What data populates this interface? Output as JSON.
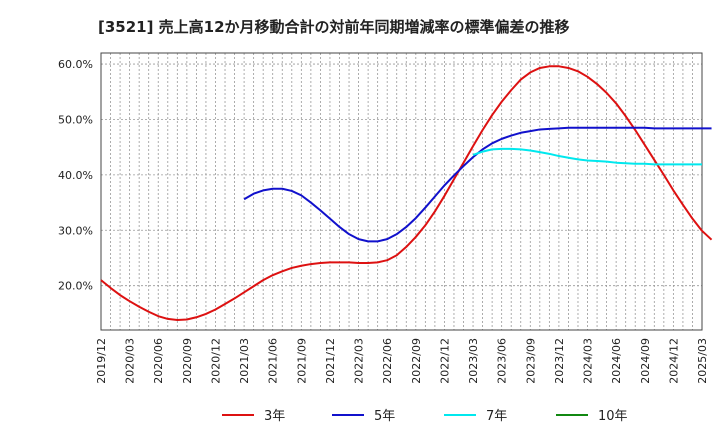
{
  "chart_data": {
    "type": "line",
    "title": "[3521]  売上高12か月移動合計の対前年同期増減率の標準偏差の推移",
    "xlabel": "",
    "ylabel": "",
    "ylim": [
      12,
      62
    ],
    "y_ticks": [
      "20.0%",
      "30.0%",
      "40.0%",
      "50.0%",
      "60.0%"
    ],
    "y_tick_values": [
      20,
      30,
      40,
      50,
      60
    ],
    "x_tick_labels": [
      "2019/12",
      "2020/03",
      "2020/06",
      "2020/09",
      "2020/12",
      "2021/03",
      "2021/06",
      "2021/09",
      "2021/12",
      "2022/03",
      "2022/06",
      "2022/09",
      "2022/12",
      "2023/03",
      "2023/06",
      "2023/09",
      "2023/12",
      "2024/03",
      "2024/06",
      "2024/09",
      "2024/12",
      "2025/03"
    ],
    "grid": true,
    "legend_position": "bottom",
    "series": [
      {
        "name": "3年",
        "color": "#dd1111",
        "start_index": 0,
        "values": [
          21.0,
          19.6,
          18.3,
          17.2,
          16.2,
          15.3,
          14.5,
          14.0,
          13.8,
          13.9,
          14.3,
          14.9,
          15.7,
          16.7,
          17.7,
          18.8,
          19.9,
          21.0,
          21.9,
          22.6,
          23.2,
          23.6,
          23.9,
          24.1,
          24.2,
          24.2,
          24.2,
          24.1,
          24.1,
          24.2,
          24.6,
          25.5,
          27.0,
          28.8,
          30.9,
          33.4,
          36.2,
          39.2,
          42.2,
          45.2,
          48.1,
          50.8,
          53.2,
          55.3,
          57.2,
          58.5,
          59.3,
          59.6,
          59.6,
          59.3,
          58.7,
          57.7,
          56.4,
          54.8,
          52.9,
          50.6,
          48.1,
          45.4,
          42.7,
          40.0,
          37.2,
          34.6,
          32.1,
          29.9,
          28.3
        ]
      },
      {
        "name": "5年",
        "color": "#1111cc",
        "start_index": 15,
        "values": [
          35.6,
          36.6,
          37.2,
          37.5,
          37.5,
          37.1,
          36.3,
          35.0,
          33.6,
          32.1,
          30.6,
          29.3,
          28.4,
          28.0,
          28.0,
          28.4,
          29.3,
          30.6,
          32.2,
          34.1,
          36.1,
          38.1,
          39.9,
          41.6,
          43.2,
          44.6,
          45.7,
          46.5,
          47.1,
          47.6,
          47.9,
          48.2,
          48.3,
          48.4,
          48.5,
          48.5,
          48.5,
          48.5,
          48.5,
          48.5,
          48.5,
          48.5,
          48.5,
          48.4,
          48.4,
          48.4,
          48.4,
          48.4,
          48.4,
          48.4
        ]
      },
      {
        "name": "7年",
        "color": "#00e8ee",
        "start_index": 39,
        "values": [
          43.6,
          44.2,
          44.6,
          44.7,
          44.7,
          44.6,
          44.4,
          44.1,
          43.8,
          43.4,
          43.1,
          42.8,
          42.6,
          42.5,
          42.4,
          42.2,
          42.1,
          42.0,
          42.0,
          41.9,
          41.9,
          41.9,
          41.9,
          41.9,
          41.9
        ]
      },
      {
        "name": "10年",
        "color": "#118811",
        "start_index": null,
        "values": []
      }
    ]
  }
}
